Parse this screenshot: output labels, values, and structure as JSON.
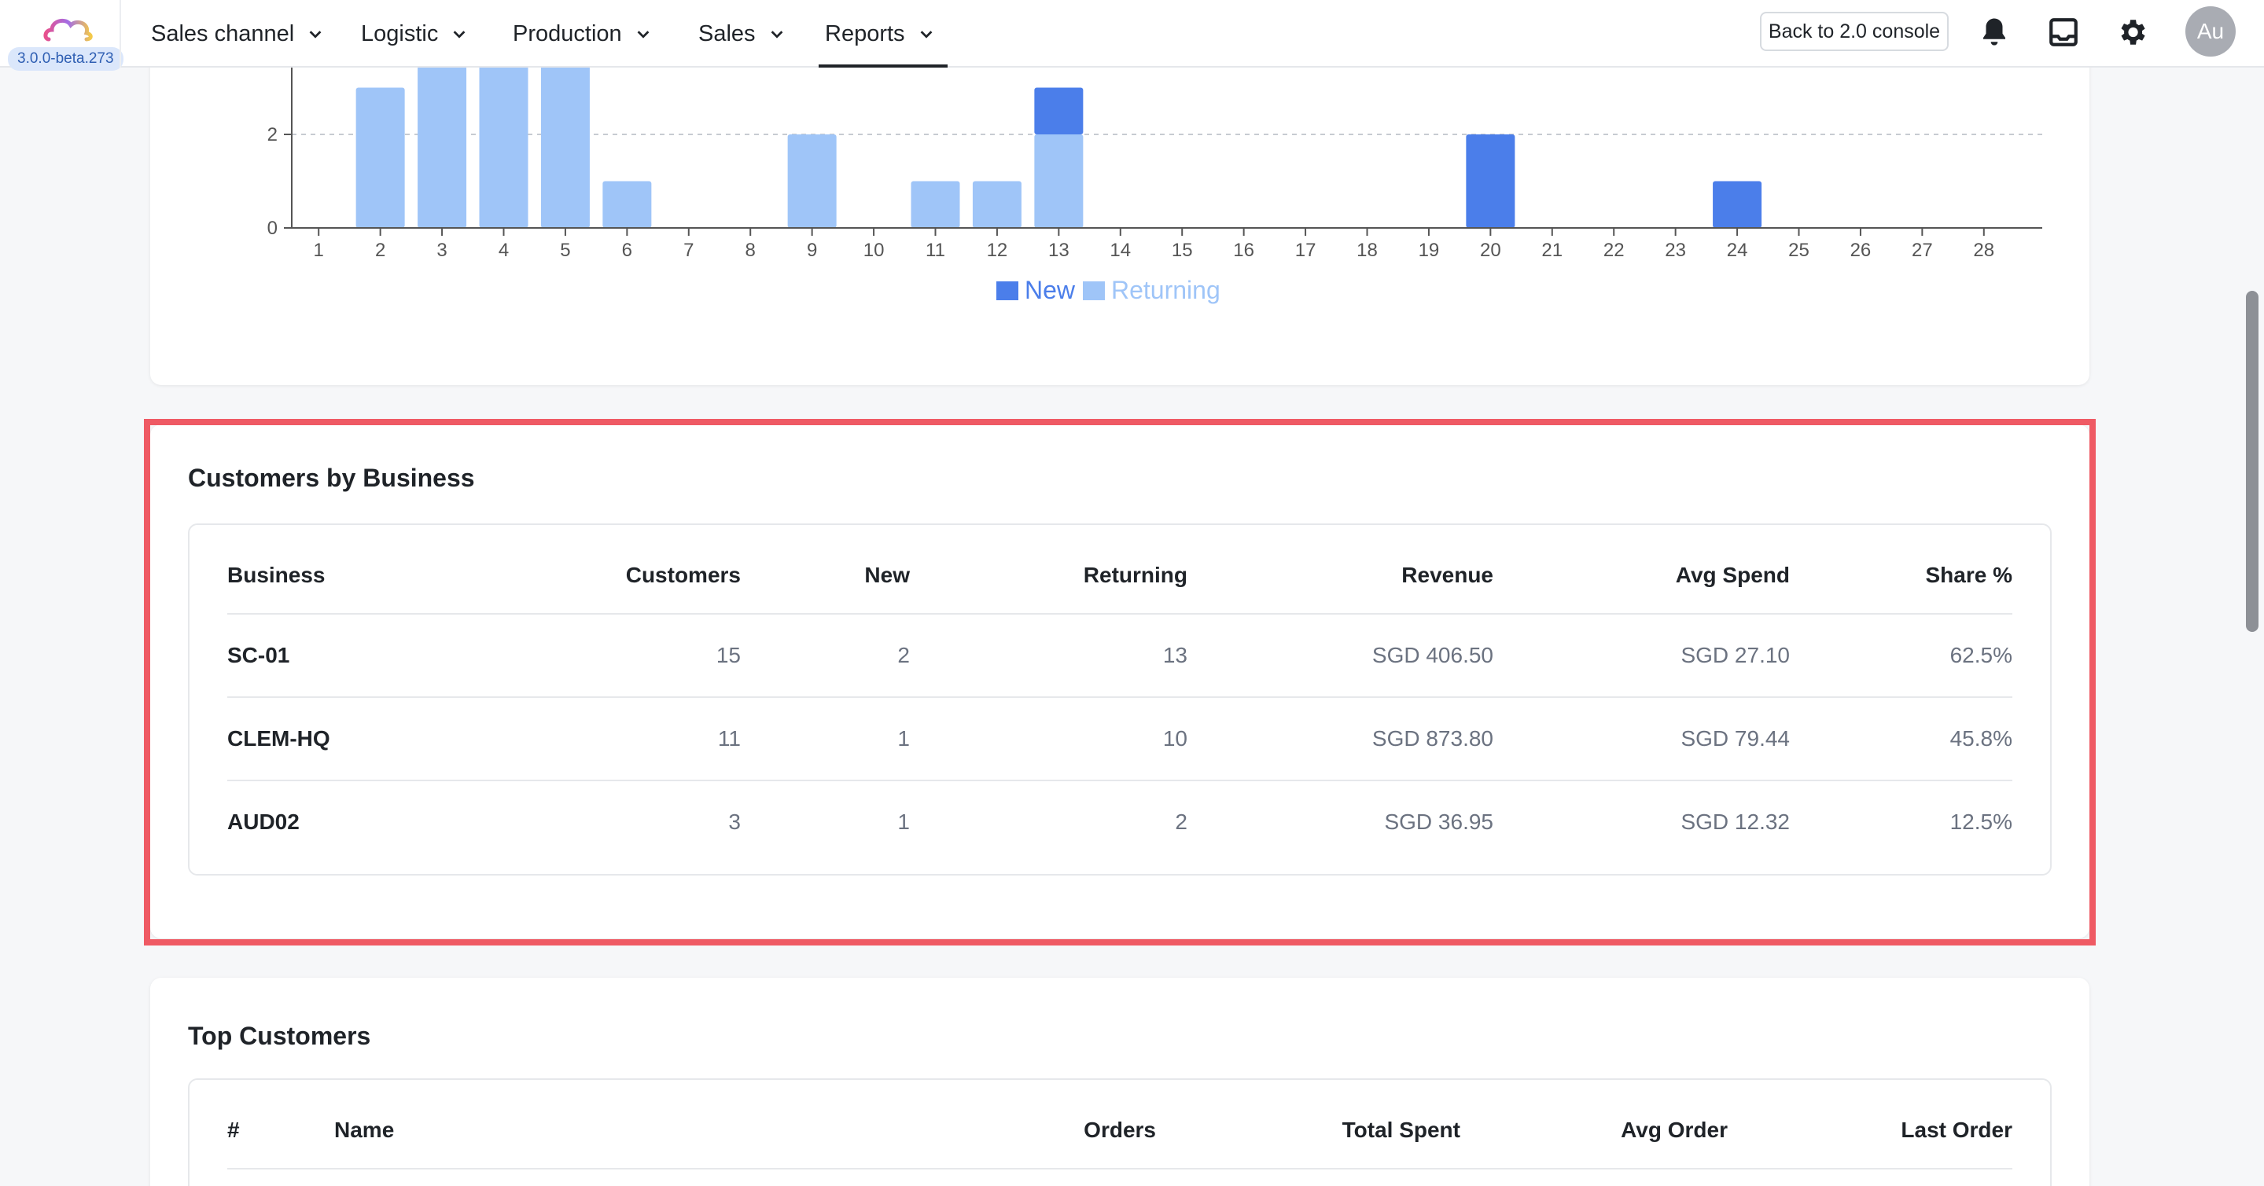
{
  "app": {
    "version": "3.0.0-beta.273"
  },
  "nav": {
    "items": [
      {
        "label": "Sales channel"
      },
      {
        "label": "Logistic"
      },
      {
        "label": "Production"
      },
      {
        "label": "Sales"
      },
      {
        "label": "Reports",
        "active": true
      }
    ],
    "back_button": "Back to 2.0 console",
    "avatar_initials": "Au",
    "icons": [
      "bell-icon",
      "inbox-icon",
      "gear-icon"
    ]
  },
  "chart_data": {
    "type": "bar",
    "stacked": true,
    "categories": [
      "1",
      "2",
      "3",
      "4",
      "5",
      "6",
      "7",
      "8",
      "9",
      "10",
      "11",
      "12",
      "13",
      "14",
      "15",
      "16",
      "17",
      "18",
      "19",
      "20",
      "21",
      "22",
      "23",
      "24",
      "25",
      "26",
      "27",
      "28"
    ],
    "series": [
      {
        "name": "New",
        "color": "#4b7eea",
        "values": [
          0,
          0,
          0,
          0,
          0,
          0,
          0,
          0,
          0,
          0,
          0,
          0,
          1,
          0,
          0,
          0,
          0,
          0,
          0,
          2,
          0,
          0,
          0,
          1,
          0,
          0,
          0,
          0
        ]
      },
      {
        "name": "Returning",
        "color": "#9fc5f8",
        "values": [
          0,
          3,
          4,
          4,
          4,
          1,
          0,
          0,
          2,
          0,
          1,
          1,
          2,
          0,
          0,
          0,
          0,
          0,
          0,
          0,
          0,
          0,
          0,
          0,
          0,
          0,
          0,
          0
        ]
      }
    ],
    "y_ticks": [
      "0",
      "2"
    ],
    "ylim": [
      0,
      4
    ],
    "grid": "dashed at 2",
    "legend_position": "bottom-center",
    "title": "",
    "xlabel": "",
    "ylabel": ""
  },
  "business": {
    "title": "Customers by Business",
    "columns": [
      "Business",
      "Customers",
      "New",
      "Returning",
      "Revenue",
      "Avg Spend",
      "Share %"
    ],
    "rows": [
      [
        "SC-01",
        "15",
        "2",
        "13",
        "SGD 406.50",
        "SGD 27.10",
        "62.5%"
      ],
      [
        "CLEM-HQ",
        "11",
        "1",
        "10",
        "SGD 873.80",
        "SGD 79.44",
        "45.8%"
      ],
      [
        "AUD02",
        "3",
        "1",
        "2",
        "SGD 36.95",
        "SGD 12.32",
        "12.5%"
      ]
    ]
  },
  "top_customers": {
    "title": "Top Customers",
    "columns": [
      "#",
      "Name",
      "Orders",
      "Total Spent",
      "Avg Order",
      "Last Order"
    ]
  },
  "colors": {
    "accent": "#4b7eea",
    "accent_light": "#9fc5f8",
    "highlight": "#ef5a64"
  }
}
